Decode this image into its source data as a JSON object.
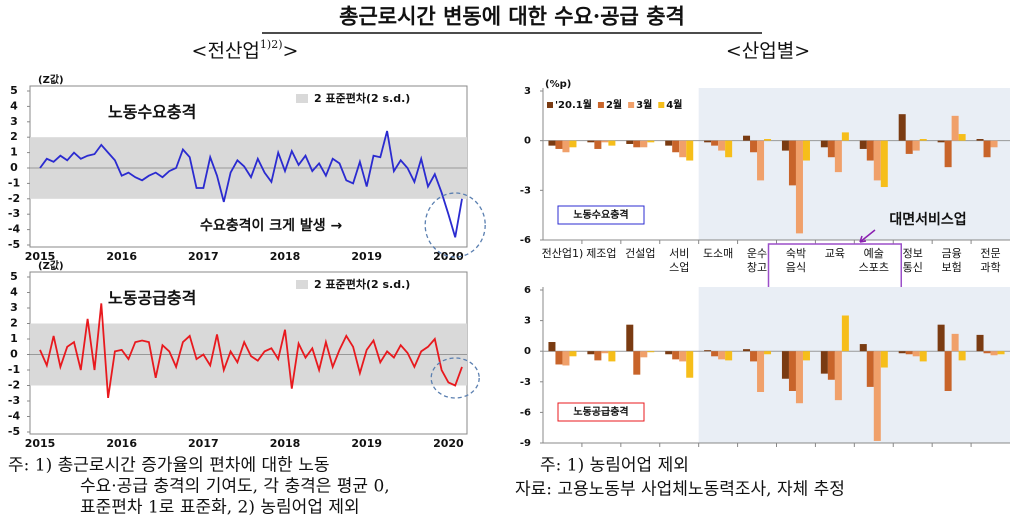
{
  "title": "총근로시간 변동에 대한 수요·공급 충격",
  "subtitle_left": {
    "text": "<전산업",
    "sup": "1)2)",
    "end": ">"
  },
  "subtitle_right": "<산업별>",
  "notes_left": [
    "주: 1) 총근로시간 증가율의 편차에 대한 노동",
    "수요·공급 충격의 기여도, 각 충격은 평균 0,",
    "표준편차 1로 표준화, 2) 농림어업 제외"
  ],
  "notes_right": [
    "주: 1) 농림어업 제외",
    "자료: 고용노동부 사업체노동력조사, 자체 추정"
  ],
  "chart_data": [
    {
      "type": "line",
      "unit": "(Z값)",
      "label": "노동수요충격",
      "color": "#2b2bd0",
      "categories": [
        "2015",
        null,
        null,
        null,
        null,
        null,
        null,
        null,
        null,
        null,
        null,
        null,
        "2016",
        null,
        null,
        null,
        null,
        null,
        null,
        null,
        null,
        null,
        null,
        null,
        "2017",
        null,
        null,
        null,
        null,
        null,
        null,
        null,
        null,
        null,
        null,
        null,
        "2018",
        null,
        null,
        null,
        null,
        null,
        null,
        null,
        null,
        null,
        null,
        null,
        "2019",
        null,
        null,
        null,
        null,
        null,
        null,
        null,
        null,
        null,
        null,
        null,
        "2020",
        null,
        null
      ],
      "values": [
        0.0,
        0.6,
        0.4,
        0.8,
        0.5,
        1.0,
        0.6,
        0.8,
        0.9,
        1.5,
        1.0,
        0.5,
        -0.5,
        -0.3,
        -0.6,
        -0.8,
        -0.5,
        -0.3,
        -0.6,
        -0.2,
        0.0,
        1.2,
        0.7,
        -1.3,
        -1.3,
        0.7,
        -0.5,
        -2.2,
        -0.3,
        0.5,
        0.1,
        -0.6,
        0.6,
        -0.3,
        -0.9,
        1.0,
        -0.2,
        1.1,
        0.2,
        0.8,
        -0.2,
        0.3,
        -0.5,
        0.6,
        0.3,
        -0.8,
        -1.0,
        0.4,
        -1.2,
        0.8,
        0.7,
        2.4,
        -0.2,
        0.5,
        0.0,
        -0.9,
        0.6,
        -1.2,
        -0.4,
        -1.6,
        -3.0,
        -4.5,
        -2.0
      ],
      "ylim": [
        -5,
        5
      ],
      "yticks": [
        5,
        4,
        3,
        2,
        1,
        0,
        -1,
        -2,
        -3,
        -4,
        -5
      ],
      "band": {
        "range": [
          -2,
          2
        ],
        "label": "2 표준편차(2 s.d.)",
        "color": "#d9d9d9"
      },
      "annotation": "수요충격이 크게 발생 →"
    },
    {
      "type": "line",
      "unit": "(Z값)",
      "label": "노동공급충격",
      "color": "#e8191e",
      "categories": [
        "2015",
        null,
        null,
        null,
        null,
        null,
        null,
        null,
        null,
        null,
        null,
        null,
        "2016",
        null,
        null,
        null,
        null,
        null,
        null,
        null,
        null,
        null,
        null,
        null,
        "2017",
        null,
        null,
        null,
        null,
        null,
        null,
        null,
        null,
        null,
        null,
        null,
        "2018",
        null,
        null,
        null,
        null,
        null,
        null,
        null,
        null,
        null,
        null,
        null,
        "2019",
        null,
        null,
        null,
        null,
        null,
        null,
        null,
        null,
        null,
        null,
        null,
        "2020",
        null,
        null
      ],
      "values": [
        0.3,
        -0.7,
        1.2,
        -0.8,
        0.5,
        0.8,
        -1.0,
        2.3,
        -1.0,
        3.3,
        -2.8,
        0.2,
        0.3,
        -0.3,
        0.8,
        0.9,
        0.8,
        -1.5,
        0.6,
        0.2,
        -0.8,
        0.8,
        1.2,
        -0.3,
        0.0,
        -0.7,
        1.3,
        -1.0,
        0.2,
        -0.5,
        0.8,
        -0.1,
        -0.4,
        0.2,
        0.4,
        -0.3,
        1.6,
        -2.2,
        0.7,
        -0.2,
        0.4,
        -1.0,
        0.8,
        -0.8,
        0.3,
        1.2,
        0.5,
        -1.2,
        0.3,
        0.9,
        -0.5,
        0.2,
        -0.2,
        0.6,
        0.1,
        -0.8,
        0.2,
        0.5,
        1.0,
        -1.0,
        -1.8,
        -2.0,
        -0.8
      ],
      "ylim": [
        -5,
        5
      ],
      "yticks": [
        5,
        4,
        3,
        2,
        1,
        0,
        -1,
        -2,
        -3,
        -4,
        -5
      ],
      "band": {
        "range": [
          -2,
          2
        ],
        "label": "2 표준편차(2 s.d.)",
        "color": "#d9d9d9"
      }
    },
    {
      "type": "bar",
      "unit": "(%p)",
      "label": "노동수요충격",
      "label_color": "#2b2bd0",
      "categories": [
        "전산업1)",
        "제조업",
        "건설업",
        "서비\n스업",
        "도소매",
        "운수\n창고",
        "숙박\n음식",
        "교육",
        "예술\n스포츠",
        "정보\n통신",
        "금융\n보험",
        "전문\n과학"
      ],
      "series": [
        {
          "name": "'20.1월",
          "color": "#7a3b12",
          "values": [
            -0.3,
            -0.1,
            -0.2,
            -0.3,
            -0.1,
            0.3,
            -0.6,
            -0.4,
            -0.5,
            1.6,
            -0.1,
            0.1
          ]
        },
        {
          "name": "2월",
          "color": "#c8642a",
          "values": [
            -0.5,
            -0.5,
            -0.4,
            -0.7,
            -0.3,
            -0.7,
            -2.7,
            -1.0,
            -1.2,
            -0.8,
            -1.6,
            -1.0
          ]
        },
        {
          "name": "3월",
          "color": "#f0a06a",
          "values": [
            -0.7,
            -0.1,
            -0.4,
            -1.0,
            -0.6,
            -2.4,
            -5.6,
            -1.9,
            -2.4,
            -0.6,
            1.5,
            -0.4
          ]
        },
        {
          "name": "4월",
          "color": "#f6be1a",
          "values": [
            -0.4,
            -0.3,
            -0.1,
            -1.2,
            -1.0,
            0.1,
            -1.2,
            0.5,
            -2.8,
            0.1,
            0.4,
            0.0
          ]
        }
      ],
      "ylim": [
        -6,
        3
      ],
      "yticks": [
        3,
        0,
        -3,
        -6
      ],
      "annotation": "대면서비스업"
    },
    {
      "type": "bar",
      "label": "노동공급충격",
      "label_color": "#e8191e",
      "series": [
        {
          "color": "#7a3b12",
          "values": [
            0.9,
            -0.3,
            2.6,
            -0.3,
            0.1,
            0.2,
            -2.7,
            -2.2,
            0.7,
            -0.2,
            2.6,
            1.6
          ]
        },
        {
          "color": "#c8642a",
          "values": [
            -1.3,
            -0.9,
            -2.3,
            -0.8,
            -0.5,
            -1.0,
            -3.9,
            -2.8,
            -3.5,
            -0.3,
            -3.9,
            -0.2
          ]
        },
        {
          "color": "#f0a06a",
          "values": [
            -1.4,
            -0.2,
            -0.6,
            -1.0,
            -0.8,
            -4.0,
            -5.1,
            -4.8,
            -8.8,
            -0.5,
            1.7,
            -0.4
          ]
        },
        {
          "color": "#f6be1a",
          "values": [
            -0.5,
            -1.0,
            -0.1,
            -2.6,
            -0.9,
            -0.3,
            -0.9,
            3.5,
            -1.6,
            -1.0,
            -0.9,
            -0.3
          ]
        }
      ],
      "ylim": [
        -9,
        6
      ],
      "yticks": [
        6,
        3,
        0,
        -3,
        -6,
        -9
      ]
    }
  ]
}
